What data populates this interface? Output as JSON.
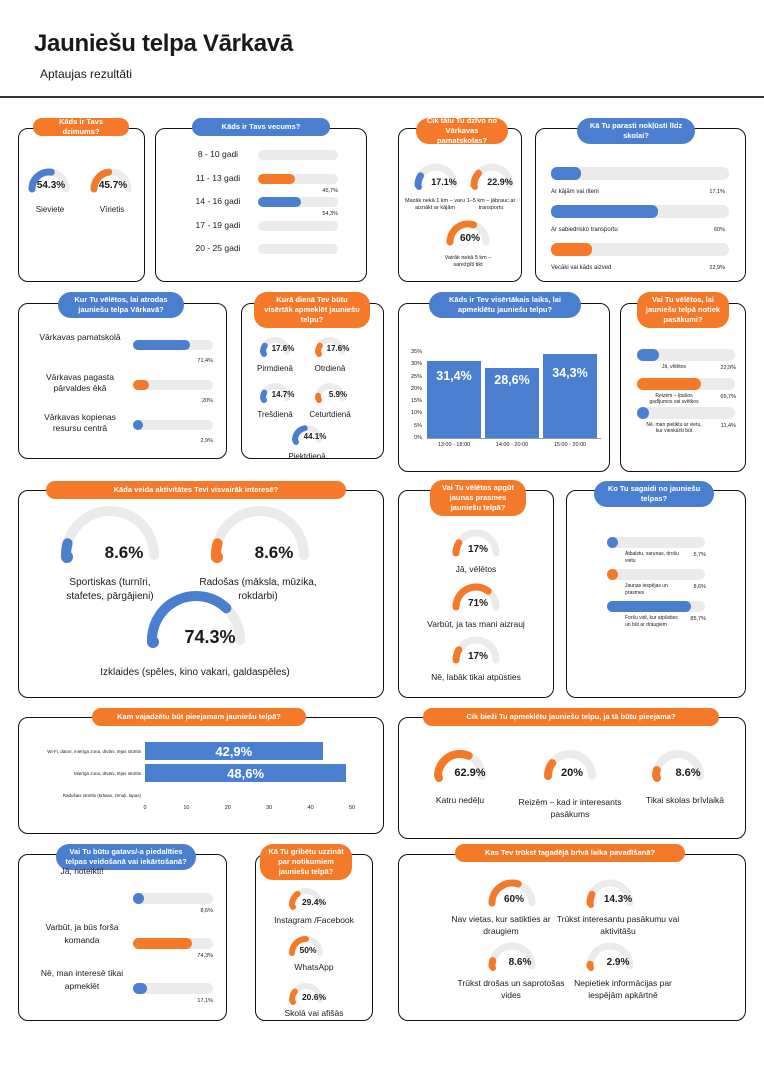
{
  "header": {
    "title": "Jauniešu telpa Vārkavā",
    "subtitle": "Aptaujas rezultāti"
  },
  "colors": {
    "orange": "#f47a2a",
    "blue": "#4a7fd0",
    "gray": "#ebebeb"
  },
  "chart_data": [
    {
      "type": "pie",
      "title": "Kāds ir Tavs dzimums?",
      "categories": [
        "Sieviete",
        "Vīrietis"
      ],
      "values": [
        54.3,
        45.7
      ],
      "labels": [
        "54.3%",
        "45.7%"
      ]
    },
    {
      "type": "bar",
      "title": "Kāds ir Tavs vecums?",
      "categories": [
        "8 - 10 gadi",
        "11 - 13 gadi",
        "14 - 16 gadi",
        "17 - 19 gadi",
        "20 - 25 gadi"
      ],
      "values": [
        0,
        45.7,
        54.3,
        0,
        0
      ],
      "labels": [
        "",
        "45,7%",
        "54,3%",
        "",
        ""
      ]
    },
    {
      "type": "pie",
      "title": "Cik tālu Tu dzīvo no Vārkavas pamatskolas?",
      "categories": [
        "Mazāk nekā 1 km – varu aiznākt ar kājām",
        "1–5 km – jābrauc ar transportu",
        "Vairāk nekā 5 km – sarežģīti tikt"
      ],
      "values": [
        17.1,
        22.9,
        60
      ],
      "labels": [
        "17.1%",
        "22.9%",
        "60%"
      ]
    },
    {
      "type": "bar",
      "title": "Kā Tu parasti nokļūsti līdz skolai?",
      "categories": [
        "Ar kājām vai riteni",
        "Ar sabiedrisko transportu",
        "Vecāki vai kāds aizved"
      ],
      "values": [
        17.1,
        60,
        22.9
      ],
      "labels": [
        "17,1%",
        "60%",
        "22,9%"
      ]
    },
    {
      "type": "bar",
      "title": "Kur Tu vēlētos, lai atrodas jauniešu telpa Vārkavā?",
      "categories": [
        "Vārkavas pamatskolā",
        "Vārkavas pagasta pārvaldes ēkā",
        "Vārkavas kopienas resursu centrā"
      ],
      "values": [
        71.4,
        20,
        2.9
      ],
      "labels": [
        "71,4%",
        "20%",
        "2,9%"
      ]
    },
    {
      "type": "pie",
      "title": "Kurā dienā Tev būtu visērtāk apmeklēt jauniešu telpu?",
      "categories": [
        "Pirmdienā",
        "Otrdienā",
        "Trešdienā",
        "Ceturtdienā",
        "Piektdienā"
      ],
      "values": [
        17.6,
        17.6,
        14.7,
        5.9,
        44.1
      ],
      "labels": [
        "17.6%",
        "17.6%",
        "14.7%",
        "5.9%",
        "44.1%"
      ]
    },
    {
      "type": "bar",
      "title": "Kāds ir Tev visērtākais laiks, lai apmeklētu jauniešu telpu?",
      "categories": [
        "13:00 - 18:00",
        "14:00 - 20:00",
        "15:00 - 20:00"
      ],
      "values": [
        31.4,
        28.6,
        34.3
      ],
      "labels": [
        "31,4%",
        "28,6%",
        "34,3%"
      ],
      "ylim": [
        0,
        35
      ],
      "yticks": [
        "0%",
        "5%",
        "10%",
        "15%",
        "20%",
        "25%",
        "30%",
        "35%"
      ]
    },
    {
      "type": "bar",
      "title": "Vai Tu vēlētos, lai jauniešu telpā notiek pasākumi?",
      "categories": [
        "Jā, vēlētos",
        "Reizēm – īpašos gadījumos vai svētkos",
        "Nē, man pietiktu ar vietu, kur vienkārši būt"
      ],
      "values": [
        22.9,
        65.7,
        11.4
      ],
      "labels": [
        "22,9%",
        "65,7%",
        "11,4%"
      ]
    },
    {
      "type": "pie",
      "title": "Kāda veida aktivitātes Tevi visvairāk interesē?",
      "categories": [
        "Sportiskas (turnīri, stafetes, pārgājieni)",
        "Radošas (māksla, mūzika, rokdarbi)",
        "Izklaides (spēles, kino vakari, galdaspēles)"
      ],
      "values": [
        8.6,
        8.6,
        74.3
      ],
      "labels": [
        "8.6%",
        "8.6%",
        "74.3%"
      ]
    },
    {
      "type": "pie",
      "title": "Vai Tu vēlētos apgūt jaunas prasmes jauniešu telpā?",
      "categories": [
        "Jā, vēlētos",
        "Varbūt, ja tas mani aizrauj",
        "Nē, labāk tikai atpūsties"
      ],
      "values": [
        17,
        71,
        17
      ],
      "labels": [
        "17%",
        "71%",
        "17%"
      ]
    },
    {
      "type": "bar",
      "title": "Ko Tu sagaidi no jauniešu telpas?",
      "categories": [
        "Atbalstu, sarunas, drošu vietu",
        "Jaunas iespējas un prasmes",
        "Foršu vidi, kur atpūsties un būt ar draugiem"
      ],
      "values": [
        5.7,
        8.6,
        85.7
      ],
      "labels": [
        "5,7%",
        "8,6%",
        "85,7%"
      ]
    },
    {
      "type": "bar",
      "title": "Kam vajadzētu būt pieejamam jauniešu telpā?",
      "categories": [
        "Wi-Fi, datori, mierīga zona, dīvāni, tējas stūrītis",
        "Mierīga zona, dīvāni, tējas stūrītis",
        "Radošais stūrītis (krāsas, zīmuļi, lapas)"
      ],
      "values": [
        42.9,
        48.6,
        0
      ],
      "labels": [
        "42,9%",
        "48,6%",
        ""
      ],
      "xlim": [
        0,
        50
      ],
      "xticks": [
        "0",
        "10",
        "20",
        "30",
        "40",
        "50"
      ]
    },
    {
      "type": "pie",
      "title": "Cik bieži Tu apmeklētu jauniešu telpu, ja tā būtu pieejama?",
      "categories": [
        "Katru nedēļu",
        "Reizēm – kad ir interesants pasākums",
        "Tikai skolas brīvlaikā"
      ],
      "values": [
        62.9,
        20,
        8.6
      ],
      "labels": [
        "62.9%",
        "20%",
        "8.6%"
      ]
    },
    {
      "type": "bar",
      "title": "Vai Tu būtu gatavs/-a piedalīties telpas veidošanā vai iekārtošanā?",
      "categories": [
        "Jā, noteikti!",
        "Varbūt, ja būs forša komanda",
        "Nē, man interesē tikai apmeklēt"
      ],
      "values": [
        8.6,
        74.3,
        17.1
      ],
      "labels": [
        "8,6%",
        "74,3%",
        "17,1%"
      ]
    },
    {
      "type": "pie",
      "title": "Kā Tu gribētu uzzināt par notikumiem jauniešu telpā?",
      "categories": [
        "Instagram /Facebook",
        "WhatsApp",
        "Skolā vai afišās"
      ],
      "values": [
        29.4,
        50,
        20.6
      ],
      "labels": [
        "29.4%",
        "50%",
        "20.6%"
      ]
    },
    {
      "type": "pie",
      "title": "Kas Tev trūkst tagadējā brīvā laika pavadīšanā?",
      "categories": [
        "Nav vietas, kur satikties ar draugiem",
        "Trūkst interesantu pasākumu vai aktivitāšu",
        "Trūkst drošas un saprotošas vides",
        "Nepietiek informācijas par iespējām apkārtnē"
      ],
      "values": [
        60,
        14.3,
        8.6,
        2.9
      ],
      "labels": [
        "60%",
        "14.3%",
        "8.6%",
        "2.9%"
      ]
    }
  ]
}
